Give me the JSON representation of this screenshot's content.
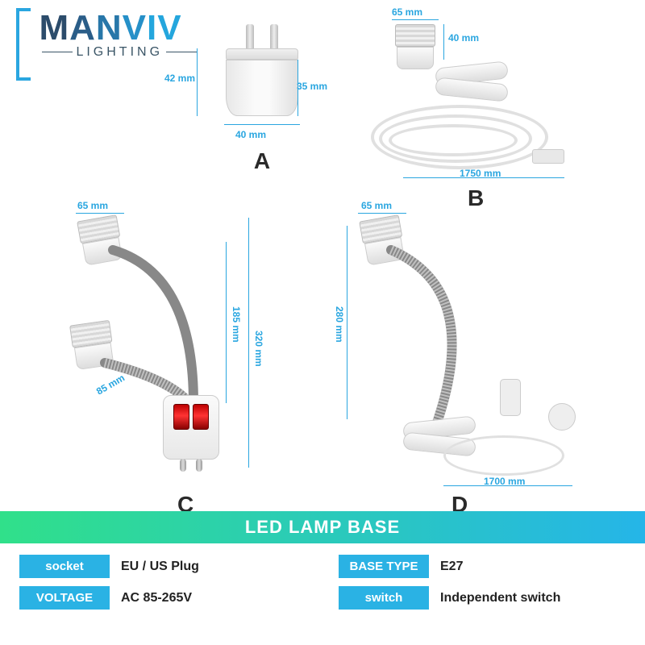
{
  "brand": {
    "name": "MANVIV",
    "subtitle": "LIGHTING",
    "bracket_color": "#2aa6e0",
    "letter_colors": [
      "#2c4c6b",
      "#2a5d88",
      "#2877a9",
      "#2690c8",
      "#24a6dd",
      "#24a6dd"
    ]
  },
  "dim_color": "#2aa6e0",
  "products": {
    "A": {
      "label": "A",
      "dims": {
        "height": "42 mm",
        "base_h": "35 mm",
        "width": "40 mm"
      }
    },
    "B": {
      "label": "B",
      "dims": {
        "socket_w": "65 mm",
        "socket_h": "40 mm",
        "cord": "1750 mm"
      }
    },
    "C": {
      "label": "C",
      "dims": {
        "socket_w": "65 mm",
        "short_neck": "85 mm",
        "long_neck": "185 mm",
        "total_h": "320 mm"
      }
    },
    "D": {
      "label": "D",
      "dims": {
        "socket_w": "65 mm",
        "neck": "280 mm",
        "cord": "1700 mm"
      }
    }
  },
  "spec": {
    "title": "LED LAMP BASE",
    "rows": [
      {
        "key": "socket",
        "val": "EU / US Plug"
      },
      {
        "key": "BASE TYPE",
        "val": "E27"
      },
      {
        "key": "VOLTAGE",
        "val": "AC 85-265V"
      },
      {
        "key": "switch",
        "val": "Independent switch"
      }
    ],
    "key_bg": "#2ab2e4",
    "header_gradient": [
      "#30e08a",
      "#25b5e8"
    ]
  }
}
